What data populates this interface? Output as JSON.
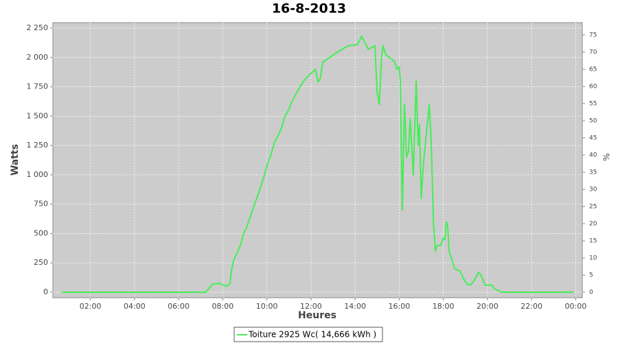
{
  "chart_data": {
    "type": "line",
    "title": "16-8-2013",
    "xlabel": "Heures",
    "ylabel": "Watts",
    "y2label": "%",
    "xlim": [
      0.3,
      24.3
    ],
    "xticks": [
      {
        "value": 2,
        "label": "02:00"
      },
      {
        "value": 4,
        "label": "04:00"
      },
      {
        "value": 6,
        "label": "06:00"
      },
      {
        "value": 8,
        "label": "08:00"
      },
      {
        "value": 10,
        "label": "10:00"
      },
      {
        "value": 12,
        "label": "12:00"
      },
      {
        "value": 14,
        "label": "14:00"
      },
      {
        "value": 16,
        "label": "16:00"
      },
      {
        "value": 18,
        "label": "18:00"
      },
      {
        "value": 20,
        "label": "20:00"
      },
      {
        "value": 22,
        "label": "22:00"
      },
      {
        "value": 24,
        "label": "00:00"
      }
    ],
    "ylim": [
      -47,
      2297
    ],
    "yticks": [
      0,
      250,
      500,
      750,
      {
        "value": 1000,
        "label": "1 000"
      },
      {
        "value": 1250,
        "label": "1 250"
      },
      {
        "value": 1500,
        "label": "1 500"
      },
      {
        "value": 1750,
        "label": "1 750"
      },
      {
        "value": 2000,
        "label": "2 000"
      },
      {
        "value": 2250,
        "label": "2 250"
      }
    ],
    "y2lim": [
      -1.6,
      78.6
    ],
    "y2ticks": [
      0,
      5,
      10,
      15,
      20,
      25,
      30,
      35,
      40,
      45,
      50,
      55,
      60,
      65,
      70,
      75
    ],
    "grid": true,
    "legend": "bottom",
    "x": [
      0.7,
      7.24,
      7.4,
      7.55,
      7.86,
      8.0,
      8.18,
      8.33,
      8.39,
      8.49,
      8.64,
      8.8,
      8.95,
      9.1,
      9.26,
      9.42,
      9.58,
      9.73,
      9.89,
      10.04,
      10.2,
      10.35,
      10.5,
      10.67,
      10.82,
      10.98,
      11.13,
      11.29,
      11.44,
      11.6,
      11.76,
      11.91,
      12.1,
      12.2,
      12.32,
      12.42,
      12.53,
      12.85,
      13.15,
      13.5,
      13.7,
      14.1,
      14.3,
      14.6,
      14.9,
      15.0,
      15.1,
      15.2,
      15.27,
      15.4,
      15.65,
      15.8,
      15.9,
      16.0,
      16.05,
      16.14,
      16.24,
      16.33,
      16.42,
      16.5,
      16.64,
      16.77,
      16.86,
      16.92,
      17.0,
      17.1,
      17.23,
      17.36,
      17.45,
      17.55,
      17.64,
      17.73,
      17.89,
      18.0,
      18.07,
      18.14,
      18.2,
      18.26,
      18.35,
      18.51,
      18.76,
      18.9,
      19.07,
      19.23,
      19.4,
      19.6,
      19.7,
      19.9,
      20.2,
      20.32,
      20.47,
      20.63,
      23.9
    ],
    "series": [
      {
        "name": "Toiture 2925 Wc( 14,666 kWh )",
        "color": "#44ee55",
        "values": [
          0,
          0,
          40,
          70,
          75,
          60,
          50,
          75,
          180,
          270,
          330,
          400,
          500,
          560,
          650,
          740,
          820,
          900,
          1000,
          1100,
          1180,
          1280,
          1330,
          1400,
          1500,
          1550,
          1620,
          1680,
          1730,
          1780,
          1820,
          1850,
          1880,
          1900,
          1790,
          1820,
          1960,
          2000,
          2040,
          2080,
          2100,
          2110,
          2180,
          2070,
          2100,
          1700,
          1600,
          2000,
          2100,
          2020,
          1990,
          1960,
          1900,
          1920,
          1800,
          700,
          1600,
          1150,
          1200,
          1480,
          1000,
          1800,
          1250,
          1430,
          800,
          1100,
          1350,
          1600,
          1300,
          600,
          350,
          400,
          400,
          460,
          450,
          600,
          560,
          350,
          300,
          200,
          180,
          120,
          70,
          60,
          100,
          170,
          150,
          60,
          60,
          30,
          15,
          0,
          0
        ]
      }
    ]
  }
}
